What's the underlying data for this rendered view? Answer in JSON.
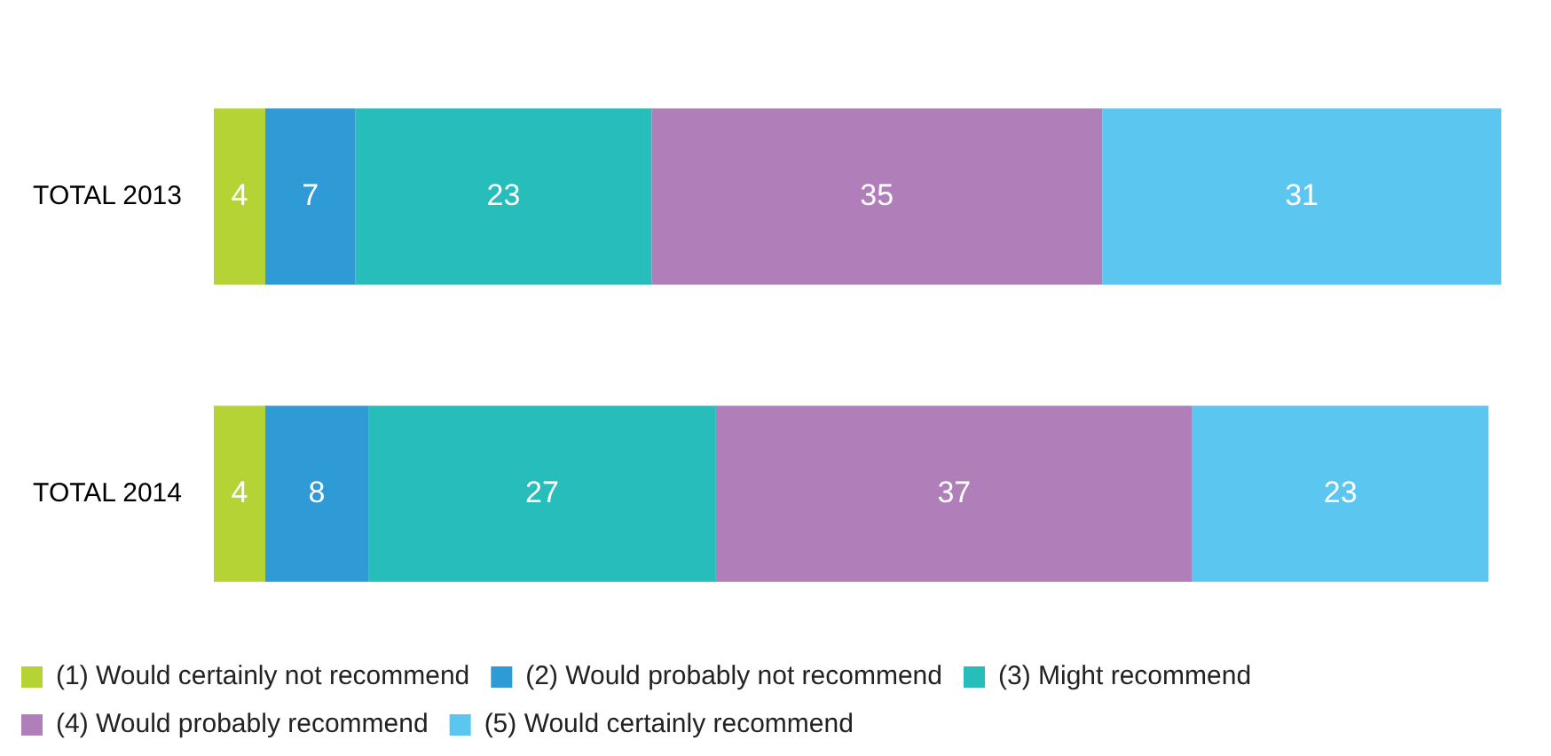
{
  "chart_data": {
    "type": "bar",
    "orientation": "horizontal",
    "stacked": true,
    "categories": [
      "TOTAL 2013",
      "TOTAL 2014"
    ],
    "series": [
      {
        "name": "(1) Would certainly not recommend",
        "color": "#b5d334",
        "values": [
          4,
          4
        ]
      },
      {
        "name": "(2) Would probably not recommend",
        "color": "#2e9bd6",
        "values": [
          7,
          8
        ]
      },
      {
        "name": "(3) Might recommend",
        "color": "#26bdbb",
        "values": [
          23,
          27
        ]
      },
      {
        "name": "(4) Would probably recommend",
        "color": "#b07eb9",
        "values": [
          35,
          37
        ]
      },
      {
        "name": "(5) Would certainly recommend",
        "color": "#5bc7f0",
        "values": [
          31,
          23
        ]
      }
    ],
    "xlim": [
      0,
      100
    ],
    "data_labels": true,
    "legend": "bottom",
    "grid": false,
    "tick_labels": "y"
  }
}
